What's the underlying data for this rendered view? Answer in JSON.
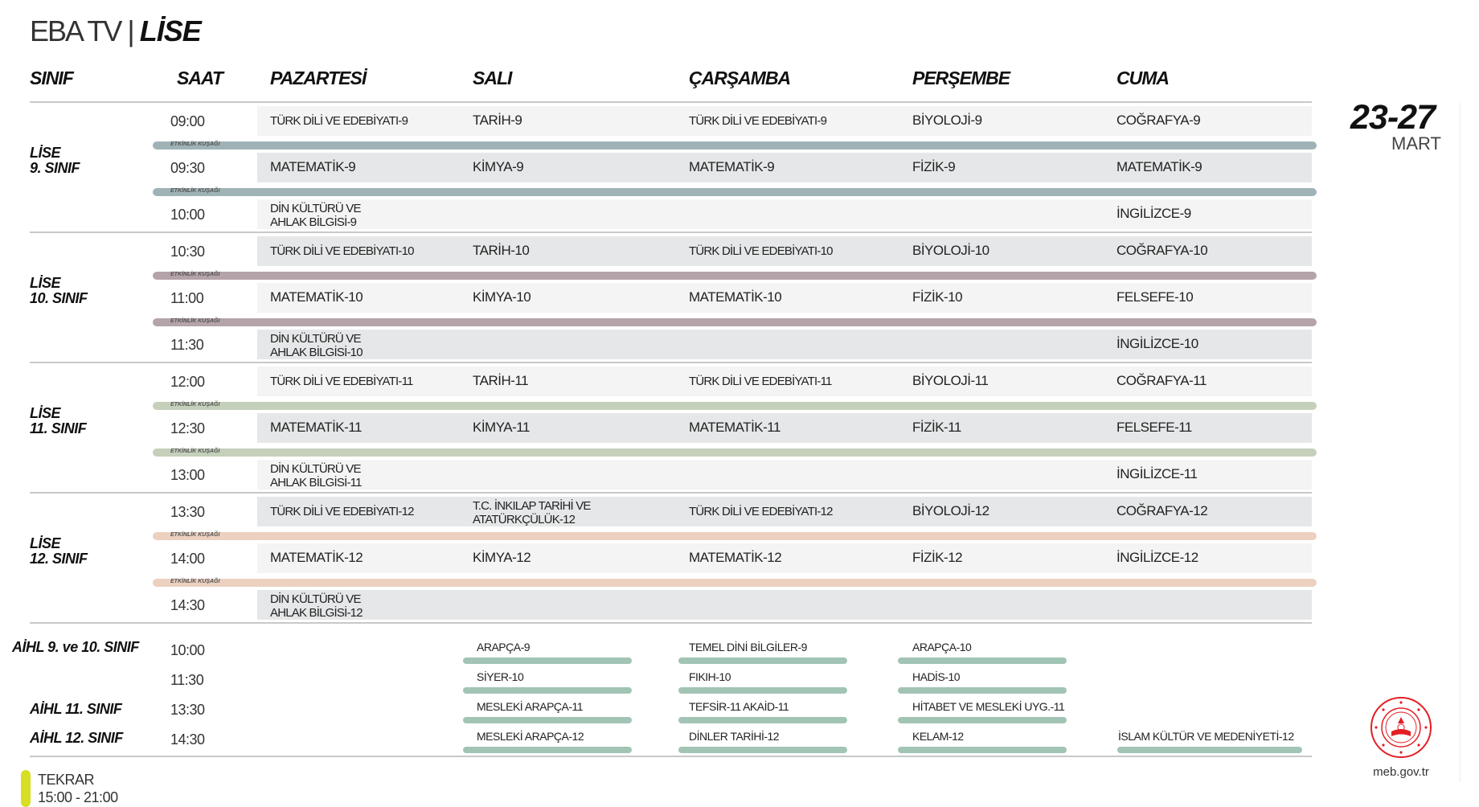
{
  "title": {
    "main": "EBA TV |",
    "bold": "LİSE"
  },
  "headers": [
    "SINIF",
    "SAAT",
    "PAZARTESİ",
    "SALI",
    "ÇARŞAMBA",
    "PERŞEMBE",
    "CUMA"
  ],
  "date": {
    "range": "23-27",
    "month": "MART"
  },
  "band_label": "ETKİNLİK KUŞAĞI",
  "groups": [
    {
      "label1": "LİSE",
      "label2": "9. SINIF",
      "band_color": "#9fb3b7",
      "rows": [
        {
          "time": "09:00",
          "cells": [
            "TÜRK DİLİ VE EDEBİYATI-9",
            "TARİH-9",
            "TÜRK DİLİ VE EDEBİYATI-9",
            "BİYOLOJİ-9",
            "COĞRAFYA-9"
          ]
        },
        {
          "time": "09:30",
          "cells": [
            "MATEMATİK-9",
            "KİMYA-9",
            "MATEMATİK-9",
            "FİZİK-9",
            "MATEMATİK-9"
          ]
        },
        {
          "time": "10:00",
          "cells": [
            "DİN KÜLTÜRÜ VE\nAHLAK BİLGİSİ-9",
            "",
            "",
            "",
            "İNGİLİZCE-9"
          ]
        }
      ]
    },
    {
      "label1": "LİSE",
      "label2": "10. SINIF",
      "band_color": "#b5a3aa",
      "rows": [
        {
          "time": "10:30",
          "cells": [
            "TÜRK DİLİ VE EDEBİYATI-10",
            "TARİH-10",
            "TÜRK DİLİ VE EDEBİYATI-10",
            "BİYOLOJİ-10",
            "COĞRAFYA-10"
          ]
        },
        {
          "time": "11:00",
          "cells": [
            "MATEMATİK-10",
            "KİMYA-10",
            "MATEMATİK-10",
            "FİZİK-10",
            "FELSEFE-10"
          ]
        },
        {
          "time": "11:30",
          "cells": [
            "DİN KÜLTÜRÜ VE\nAHLAK BİLGİSİ-10",
            "",
            "",
            "",
            "İNGİLİZCE-10"
          ]
        }
      ]
    },
    {
      "label1": "LİSE",
      "label2": "11. SINIF",
      "band_color": "#c5d0bb",
      "rows": [
        {
          "time": "12:00",
          "cells": [
            "TÜRK DİLİ VE EDEBİYATI-11",
            "TARİH-11",
            "TÜRK DİLİ VE EDEBİYATI-11",
            "BİYOLOJİ-11",
            "COĞRAFYA-11"
          ]
        },
        {
          "time": "12:30",
          "cells": [
            "MATEMATİK-11",
            "KİMYA-11",
            "MATEMATİK-11",
            "FİZİK-11",
            "FELSEFE-11"
          ]
        },
        {
          "time": "13:00",
          "cells": [
            "DİN KÜLTÜRÜ VE\nAHLAK BİLGİSİ-11",
            "",
            "",
            "",
            "İNGİLİZCE-11"
          ]
        }
      ]
    },
    {
      "label1": "LİSE",
      "label2": "12. SINIF",
      "band_color": "#ecd0c0",
      "rows": [
        {
          "time": "13:30",
          "cells": [
            "TÜRK DİLİ VE EDEBİYATI-12",
            "T.C. İNKILAP TARİHİ VE\nATATÜRKÇÜLÜK-12",
            "TÜRK DİLİ VE EDEBİYATI-12",
            "BİYOLOJİ-12",
            "COĞRAFYA-12"
          ]
        },
        {
          "time": "14:00",
          "cells": [
            "MATEMATİK-12",
            "KİMYA-12",
            "MATEMATİK-12",
            "FİZİK-12",
            "İNGİLİZCE-12"
          ]
        },
        {
          "time": "14:30",
          "cells": [
            "DİN KÜLTÜRÜ VE\nAHLAK BİLGİSİ-12",
            "",
            "",
            "",
            ""
          ]
        }
      ]
    }
  ],
  "aihl": {
    "labels": [
      "AİHL 9. ve 10. SINIF",
      "AİHL 11. SINIF",
      "AİHL 12. SINIF"
    ],
    "rows": [
      {
        "time": "10:00",
        "cells": [
          "ARAPÇA-9",
          "TEMEL DİNİ BİLGİLER-9",
          "ARAPÇA-10",
          ""
        ]
      },
      {
        "time": "11:30",
        "cells": [
          "SİYER-10",
          "FIKIH-10",
          "HADİS-10",
          ""
        ]
      },
      {
        "time": "13:30",
        "cells": [
          "MESLEKİ ARAPÇA-11",
          "TEFSİR-11  AKAİD-11",
          "HİTABET VE MESLEKİ UYG.-11",
          ""
        ]
      },
      {
        "time": "14:30",
        "cells": [
          "MESLEKİ ARAPÇA-12",
          "DİNLER TARİHİ-12",
          "KELAM-12",
          "İSLAM KÜLTÜR VE MEDENİYETİ-12"
        ]
      }
    ]
  },
  "tekrar": {
    "label": "TEKRAR",
    "time": "15:00 - 21:00",
    "color": "#d7df23"
  },
  "footer": {
    "site": "meb.gov.tr"
  }
}
